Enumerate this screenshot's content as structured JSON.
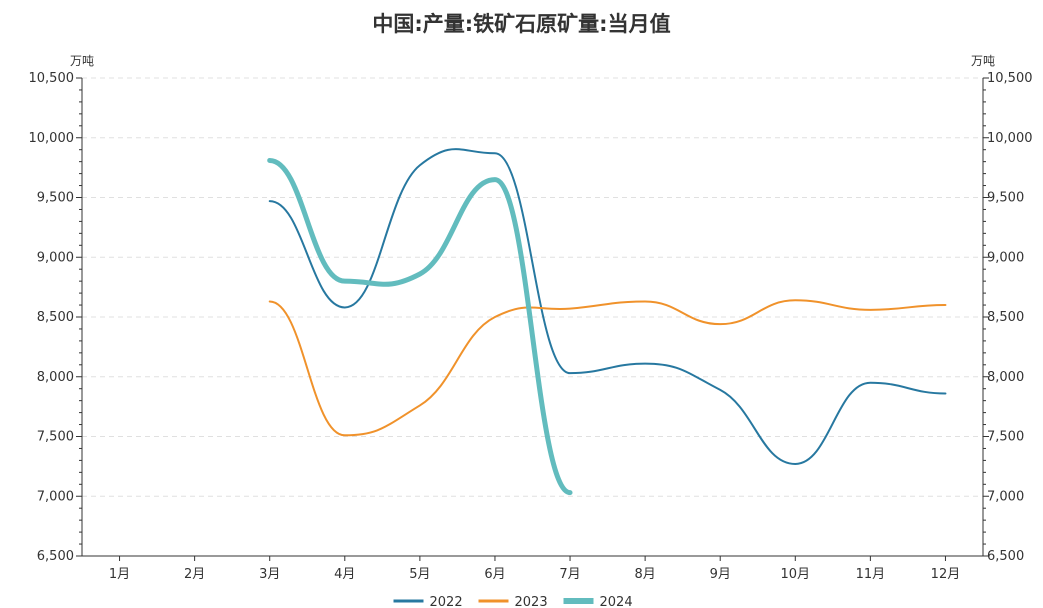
{
  "chart_data": {
    "type": "line",
    "title": "中国:产量:铁矿石原矿量:当月值",
    "ylabel": "万吨",
    "ylabel_right": "万吨",
    "categories": [
      "1月",
      "2月",
      "3月",
      "4月",
      "5月",
      "6月",
      "7月",
      "8月",
      "9月",
      "10月",
      "11月",
      "12月"
    ],
    "ylim": [
      6500,
      10500
    ],
    "yticks": [
      6500,
      7000,
      7500,
      8000,
      8500,
      9000,
      9500,
      10000,
      10500
    ],
    "ytick_labels": [
      "6,500",
      "7,000",
      "7,500",
      "8,000",
      "8,500",
      "9,000",
      "9,500",
      "10,000",
      "10,500"
    ],
    "grid": true,
    "legend_position": "bottom-center",
    "series": [
      {
        "name": "2022",
        "color": "#2778a0",
        "values": [
          null,
          null,
          9470,
          8580,
          9770,
          9870,
          8030,
          8110,
          7890,
          7270,
          7950,
          7860
        ]
      },
      {
        "name": "2023",
        "color": "#f0922b",
        "values": [
          null,
          null,
          8630,
          7510,
          7760,
          8500,
          8570,
          8630,
          8440,
          8640,
          8560,
          8600
        ]
      },
      {
        "name": "2024",
        "color": "#62bcbe",
        "values": [
          null,
          null,
          9810,
          8800,
          8860,
          9650,
          7030,
          null,
          null,
          null,
          null,
          null
        ]
      }
    ]
  }
}
